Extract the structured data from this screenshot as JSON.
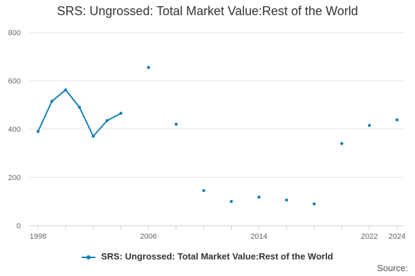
{
  "chart_data": {
    "type": "line",
    "title": "SRS: Ungrossed: Total Market Value:Rest of the World",
    "xlabel": "",
    "ylabel": "",
    "xlim": [
      1998,
      2024
    ],
    "ylim": [
      0,
      800
    ],
    "y_ticks": [
      0,
      200,
      400,
      600,
      800
    ],
    "x_ticks": [
      1998,
      2006,
      2014,
      2022,
      2024
    ],
    "grid": "horizontal",
    "legend_position": "bottom",
    "series": [
      {
        "name": "SRS: Ungrossed: Total Market Value:Rest of the World",
        "color": "#0e7fb7",
        "points": [
          {
            "x": 1998,
            "y": 390
          },
          {
            "x": 1999,
            "y": 515
          },
          {
            "x": 2000,
            "y": 562
          },
          {
            "x": 2001,
            "y": 490
          },
          {
            "x": 2002,
            "y": 370
          },
          {
            "x": 2003,
            "y": 435
          },
          {
            "x": 2004,
            "y": 465
          },
          {
            "x": 2006,
            "y": 655
          },
          {
            "x": 2008,
            "y": 420
          },
          {
            "x": 2010,
            "y": 145
          },
          {
            "x": 2012,
            "y": 100
          },
          {
            "x": 2014,
            "y": 118
          },
          {
            "x": 2016,
            "y": 106
          },
          {
            "x": 2018,
            "y": 90
          },
          {
            "x": 2020,
            "y": 340
          },
          {
            "x": 2022,
            "y": 415
          },
          {
            "x": 2024,
            "y": 438
          }
        ]
      }
    ]
  },
  "legend": {
    "label": "SRS: Ungrossed: Total Market Value:Rest of the World"
  },
  "source_label": "Source:"
}
